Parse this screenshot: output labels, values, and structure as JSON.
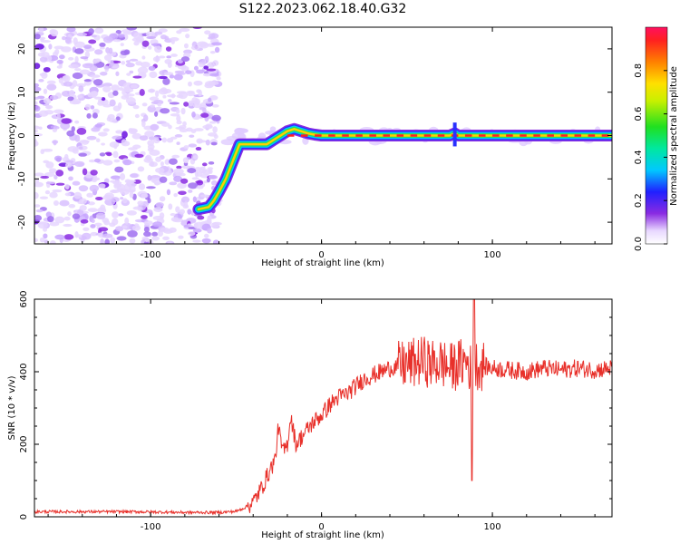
{
  "title": "S122.2023.062.18.40.G32",
  "chart_data": [
    {
      "type": "heatmap",
      "description_source": "spectrogram panel",
      "xlabel": "Height of straight line (km)",
      "ylabel": "Frequency (Hz)",
      "xlim": [
        -168,
        170
      ],
      "ylim": [
        -25,
        25
      ],
      "x_ticks": [
        "-100",
        "0",
        "100"
      ],
      "y_ticks": [
        "-20",
        "-10",
        "0",
        "10",
        "20"
      ],
      "colorbar": {
        "label": "Normalized spectral amplitude",
        "ticks": [
          "0.0",
          "0.2",
          "0.4",
          "0.6",
          "0.8"
        ],
        "range": [
          0,
          1
        ]
      },
      "ridge": {
        "x": [
          -72,
          -66,
          -63,
          -60,
          -56,
          -52,
          -48,
          -44,
          -40,
          -36,
          -32,
          -28,
          -24,
          -20,
          -16,
          -12,
          -8,
          -4,
          0,
          20,
          40,
          60,
          75,
          78,
          80,
          100,
          120,
          140,
          170
        ],
        "y": [
          -17,
          -16.5,
          -15,
          -13,
          -10,
          -6,
          -2,
          -2,
          -2,
          -2,
          -2,
          -1,
          0,
          1,
          1.5,
          1,
          0.5,
          0.2,
          0,
          0,
          0,
          0,
          0,
          0.5,
          0,
          0,
          0,
          0,
          0
        ]
      },
      "noise_region_x": [
        -168,
        -60
      ]
    },
    {
      "type": "line",
      "xlabel": "Height of straight line (km)",
      "ylabel": "SNR (10 * v/v)",
      "xlim": [
        -168,
        170
      ],
      "ylim": [
        0,
        600
      ],
      "x_ticks": [
        "-100",
        "0",
        "100"
      ],
      "y_ticks": [
        "0",
        "200",
        "400",
        "600"
      ],
      "color": "#e8302a",
      "series": [
        {
          "x": [
            -168,
            -140,
            -110,
            -80,
            -60,
            -50,
            -45,
            -40,
            -35,
            -30,
            -27,
            -25,
            -24,
            -22,
            -20,
            -18,
            -15,
            -10,
            -5,
            0,
            5,
            10,
            15,
            20,
            25,
            30,
            35,
            40,
            45,
            50,
            55,
            60,
            65,
            70,
            75,
            80,
            85,
            88,
            90,
            95,
            100,
            110,
            120,
            130,
            140,
            150,
            160,
            170
          ],
          "y": [
            14,
            14,
            14,
            12,
            12,
            15,
            25,
            40,
            80,
            130,
            160,
            260,
            200,
            180,
            200,
            280,
            200,
            230,
            260,
            280,
            310,
            330,
            340,
            360,
            380,
            390,
            400,
            410,
            415,
            420,
            425,
            430,
            420,
            425,
            410,
            420,
            430,
            400,
            420,
            415,
            410,
            405,
            400,
            410,
            405,
            410,
            405,
            410
          ]
        }
      ]
    }
  ]
}
